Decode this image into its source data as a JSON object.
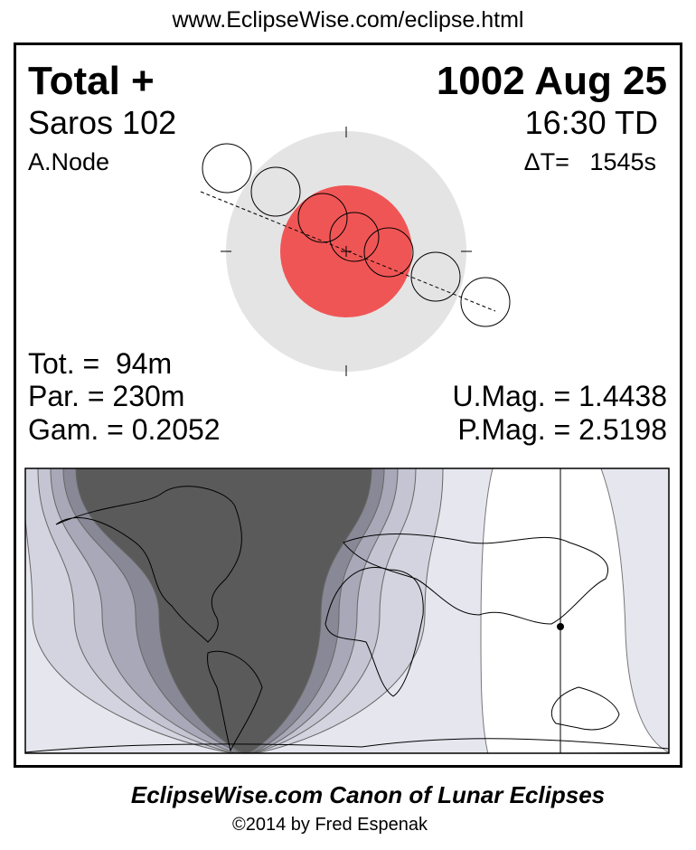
{
  "url": "www.EclipseWise.com/eclipse.html",
  "header": {
    "type": "Total  +",
    "date": "1002 Aug 25",
    "saros": "Saros 102",
    "time": "16:30 TD",
    "node": "A.Node",
    "delta_t": "ΔT=   1545s"
  },
  "stats": {
    "tot": "Tot. =  94m",
    "par": "Par. = 230m",
    "gam": "Gam. = 0.2052",
    "umag": "U.Mag. = 1.4438",
    "pmag": "P.Mag. = 2.5198"
  },
  "footer": {
    "title": "EclipseWise.com Canon of Lunar Eclipses",
    "copyright": "©2014 by Fred Espenak"
  },
  "colors": {
    "umbra": "#f05555",
    "penumbra": "#e4e4e4",
    "night_dark": "#5a5a5a"
  }
}
